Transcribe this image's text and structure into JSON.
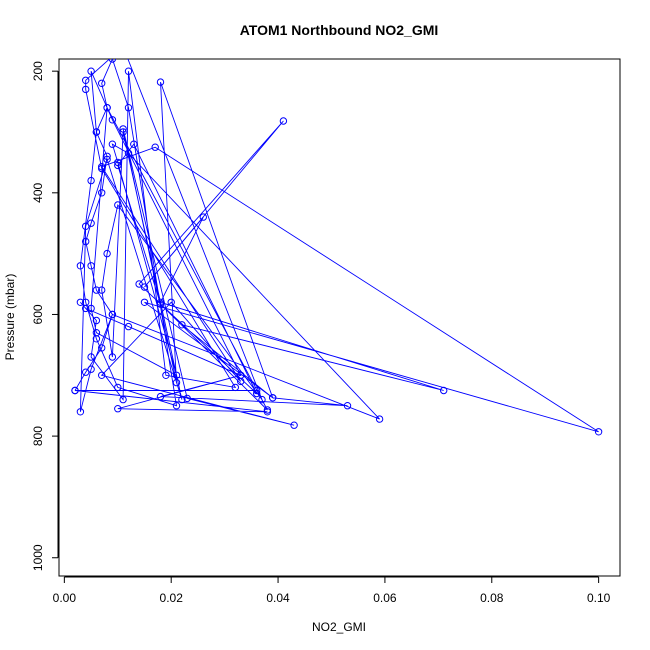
{
  "chart_data": {
    "type": "line",
    "title": "ATOM1 Northbound NO2_GMI",
    "xlabel": "NO2_GMI",
    "ylabel": "Pressure (mbar)",
    "xlim": [
      -0.001,
      0.104
    ],
    "ylim": [
      1030,
      180
    ],
    "y_reversed": true,
    "x_ticks": [
      0.0,
      0.02,
      0.04,
      0.06,
      0.08,
      0.1
    ],
    "x_tick_labels": [
      "0.00",
      "0.02",
      "0.04",
      "0.06",
      "0.08",
      "0.10"
    ],
    "y_ticks": [
      200,
      400,
      600,
      800,
      1000
    ],
    "y_tick_labels": [
      "200",
      "400",
      "600",
      "800",
      "1000"
    ],
    "grid": false,
    "marker": "open-circle",
    "series": [
      {
        "color": "#0000ff",
        "points": [
          [
            0.002,
            725
          ],
          [
            0.004,
            695
          ],
          [
            0.007,
            655
          ],
          [
            0.009,
            600
          ],
          [
            0.006,
            560
          ],
          [
            0.005,
            520
          ],
          [
            0.004,
            480
          ],
          [
            0.005,
            450
          ],
          [
            0.007,
            400
          ],
          [
            0.008,
            340
          ],
          [
            0.006,
            300
          ],
          [
            0.008,
            260
          ],
          [
            0.007,
            220
          ],
          [
            0.009,
            180
          ],
          [
            0.012,
            260
          ],
          [
            0.021,
            750
          ],
          [
            0.01,
            720
          ],
          [
            0.006,
            640
          ],
          [
            0.004,
            580
          ],
          [
            0.003,
            520
          ],
          [
            0.005,
            380
          ],
          [
            0.006,
            300
          ],
          [
            0.005,
            200
          ],
          [
            0.009,
            280
          ],
          [
            0.033,
            700
          ],
          [
            0.012,
            620
          ],
          [
            0.004,
            590
          ],
          [
            0.003,
            580
          ],
          [
            0.006,
            610
          ],
          [
            0.005,
            670
          ],
          [
            0.011,
            740
          ],
          [
            0.012,
            200
          ],
          [
            0.019,
            700
          ],
          [
            0.032,
            720
          ],
          [
            0.007,
            360
          ],
          [
            0.004,
            230
          ],
          [
            0.004,
            215
          ],
          [
            0.011,
            160
          ],
          [
            0.037,
            740
          ],
          [
            0.01,
            420
          ],
          [
            0.008,
            500
          ],
          [
            0.007,
            560
          ],
          [
            0.009,
            670
          ],
          [
            0.011,
            300
          ],
          [
            0.022,
            740
          ],
          [
            0.008,
            345
          ],
          [
            0.004,
            455
          ],
          [
            0.003,
            760
          ],
          [
            0.005,
            690
          ],
          [
            0.009,
            600
          ],
          [
            0.059,
            772
          ],
          [
            0.012,
            335
          ],
          [
            0.009,
            320
          ],
          [
            0.01,
            350
          ],
          [
            0.021,
            700
          ],
          [
            0.006,
            630
          ],
          [
            0.005,
            590
          ],
          [
            0.008,
            260
          ],
          [
            0.038,
            757
          ],
          [
            0.018,
            583
          ],
          [
            0.01,
            355
          ],
          [
            0.013,
            320
          ],
          [
            0.036,
            730
          ],
          [
            0.014,
            550
          ],
          [
            0.041,
            282
          ],
          [
            0.015,
            555
          ],
          [
            0.026,
            440
          ],
          [
            0.018,
            580
          ],
          [
            0.071,
            725
          ],
          [
            0.022,
            617
          ],
          [
            0.039,
            737
          ],
          [
            0.018,
            218
          ],
          [
            0.021,
            712
          ],
          [
            0.011,
            295
          ],
          [
            0.023,
            738
          ],
          [
            0.043,
            782
          ],
          [
            0.007,
            700
          ],
          [
            0.02,
            580
          ],
          [
            0.033,
            710
          ],
          [
            0.007,
            357
          ],
          [
            0.017,
            325
          ],
          [
            0.1,
            793
          ],
          [
            0.015,
            580
          ],
          [
            0.039,
            737
          ],
          [
            0.053,
            750
          ],
          [
            0.018,
            735
          ],
          [
            0.033,
            700
          ],
          [
            0.01,
            755
          ],
          [
            0.038,
            760
          ],
          [
            0.002,
            725
          ],
          [
            0.036,
            725
          ]
        ]
      }
    ]
  }
}
